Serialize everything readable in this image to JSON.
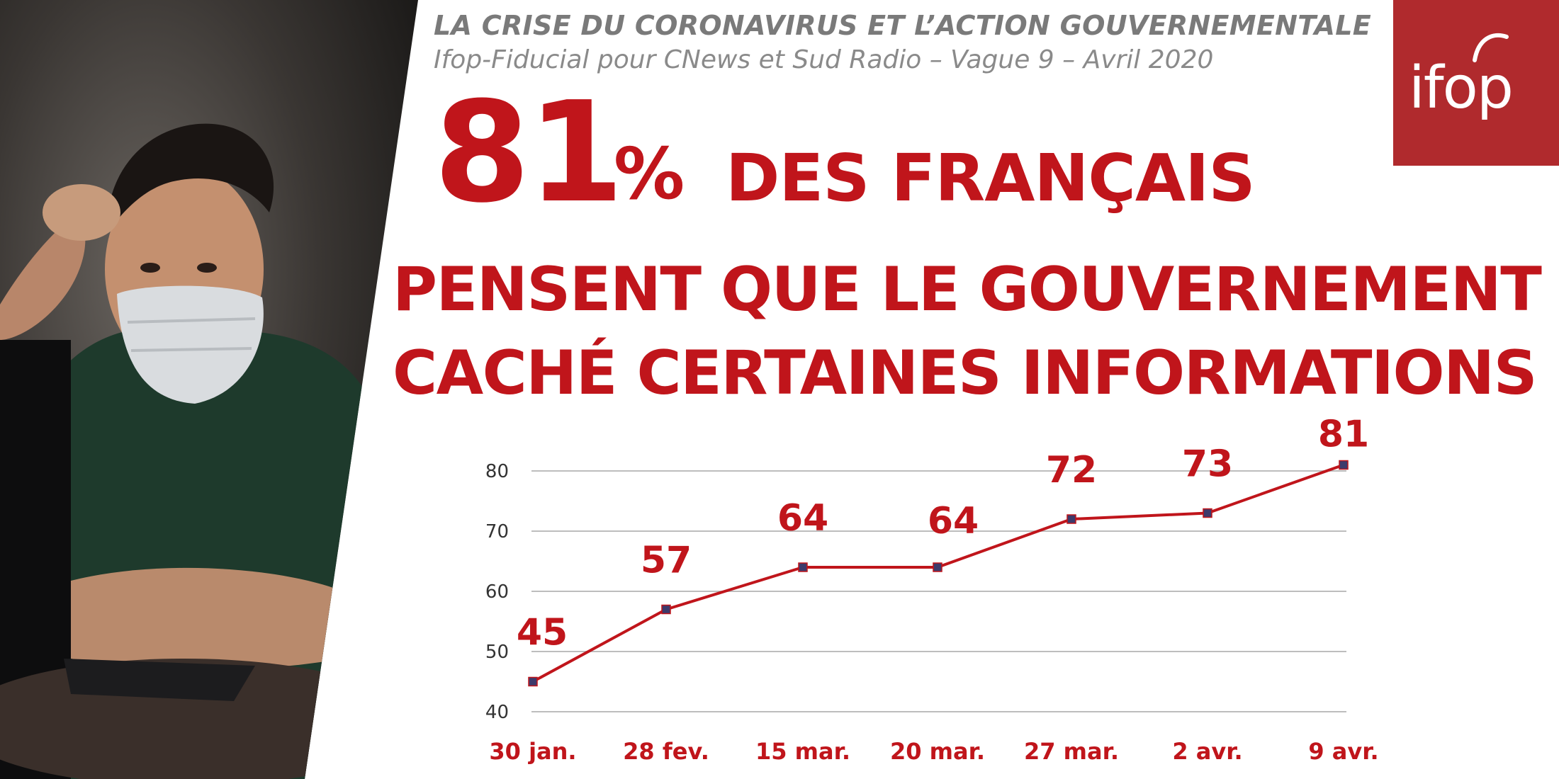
{
  "header": {
    "title": "LA CRISE DU CORONAVIRUS ET L’ACTION GOUVERNEMENTALE",
    "subtitle": "Ifop-Fiducial pour CNews et Sud Radio – Vague 9 – Avril 2020"
  },
  "logo": {
    "text": "ifop"
  },
  "headline": {
    "value": "81",
    "percent_sign": "%",
    "label": "DES FRANÇAIS",
    "line1": "PENSENT QUE LE GOUVERNEMENT A",
    "line2": "CACHÉ CERTAINES INFORMATIONS"
  },
  "colors": {
    "accent": "#c0151b",
    "logo_bg": "#b02a2d",
    "marker": "#3d3a6b"
  },
  "chart_data": {
    "type": "line",
    "categories": [
      "30 jan.",
      "28 fev.",
      "15 mar.",
      "20 mar.",
      "27 mar.",
      "2 avr.",
      "9 avr."
    ],
    "values": [
      45,
      57,
      64,
      64,
      72,
      73,
      81
    ],
    "data_labels": [
      "45",
      "57",
      "64",
      "64",
      "72",
      "73",
      "81"
    ],
    "ylim": [
      40,
      80
    ],
    "yticks": [
      40,
      50,
      60,
      70,
      80
    ],
    "grid": true,
    "title": "",
    "xlabel": "",
    "ylabel": ""
  }
}
